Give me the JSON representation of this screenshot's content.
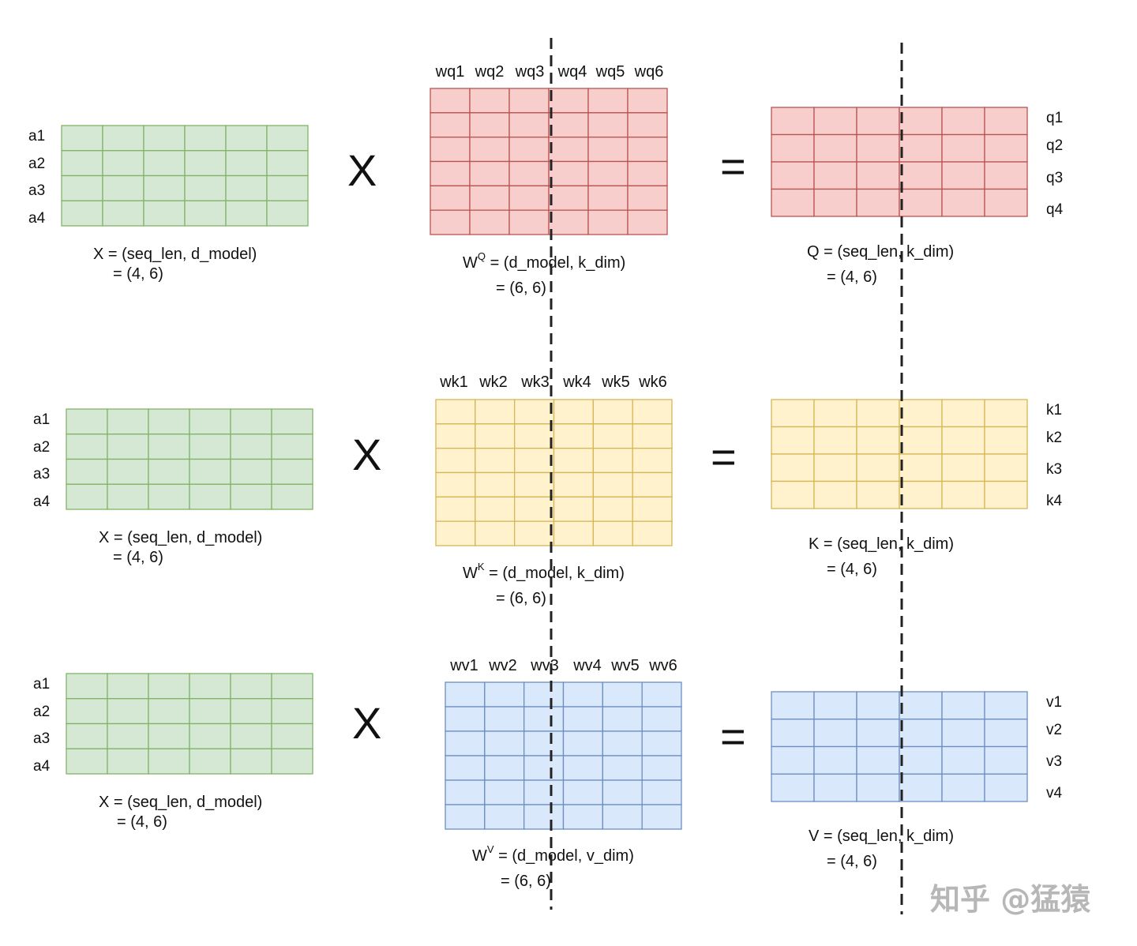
{
  "colors": {
    "x_fill": "#d5e8d4",
    "x_stroke": "#82b366",
    "q_fill": "#f8cecc",
    "q_stroke": "#b85450",
    "k_fill": "#fff2cc",
    "k_stroke": "#d6b656",
    "v_fill": "#dae8fc",
    "v_stroke": "#6c8ebf"
  },
  "operators": {
    "times": "X",
    "equals": "="
  },
  "rows": [
    {
      "id": "q",
      "x_row_labels": [
        "a1",
        "a2",
        "a3",
        "a4"
      ],
      "x_caption_1": "X =  (seq_len, d_model)",
      "x_caption_2": "= (4, 6)",
      "w_col_labels": [
        "wq1",
        "wq2",
        "wq3",
        "wq4",
        "wq5",
        "wq6"
      ],
      "w_base": "W",
      "w_sup": "Q",
      "w_caption_1": " =  (d_model, k_dim)",
      "w_caption_2": "=  (6, 6)",
      "r_row_labels": [
        "q1",
        "q2",
        "q3",
        "q4"
      ],
      "r_caption_1": "Q =  (seq_len, k_dim)",
      "r_caption_2": "=  (4, 6)"
    },
    {
      "id": "k",
      "x_row_labels": [
        "a1",
        "a2",
        "a3",
        "a4"
      ],
      "x_caption_1": "X =  (seq_len, d_model)",
      "x_caption_2": "= (4, 6)",
      "w_col_labels": [
        "wk1",
        "wk2",
        "wk3",
        "wk4",
        "wk5",
        "wk6"
      ],
      "w_base": "W",
      "w_sup": "K",
      "w_caption_1": " =  (d_model, k_dim)",
      "w_caption_2": "=  (6, 6)",
      "r_row_labels": [
        "k1",
        "k2",
        "k3",
        "k4"
      ],
      "r_caption_1": "K =  (seq_len, k_dim)",
      "r_caption_2": "=  (4, 6)"
    },
    {
      "id": "v",
      "x_row_labels": [
        "a1",
        "a2",
        "a3",
        "a4"
      ],
      "x_caption_1": "X =  (seq_len, d_model)",
      "x_caption_2": "= (4, 6)",
      "w_col_labels": [
        "wv1",
        "wv2",
        "wv3",
        "wv4",
        "wv5",
        "wv6"
      ],
      "w_base": "W",
      "w_sup": "V",
      "w_caption_1": " =  (d_model, v_dim)",
      "w_caption_2": "=  (6, 6)",
      "r_row_labels": [
        "v1",
        "v2",
        "v3",
        "v4"
      ],
      "r_caption_1": "V =  (seq_len, k_dim)",
      "r_caption_2": "=  (4, 6)"
    }
  ],
  "watermark": "知乎 @猛猿"
}
